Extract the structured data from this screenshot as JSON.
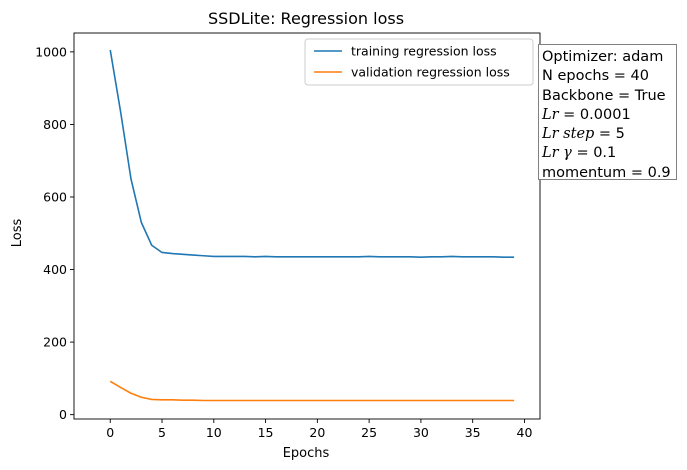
{
  "chart_data": {
    "type": "line",
    "title": "SSDLite: Regression loss",
    "xlabel": "Epochs",
    "ylabel": "Loss",
    "xlim": [
      -3.5,
      41.5
    ],
    "ylim": [
      -12,
      1052
    ],
    "x_ticks": [
      "0",
      "5",
      "10",
      "15",
      "20",
      "25",
      "30",
      "35",
      "40"
    ],
    "y_ticks": [
      "0",
      "200",
      "400",
      "600",
      "800",
      "1000"
    ],
    "x": [
      0,
      1,
      2,
      3,
      4,
      5,
      6,
      7,
      8,
      9,
      10,
      11,
      12,
      13,
      14,
      15,
      16,
      17,
      18,
      19,
      20,
      21,
      22,
      23,
      24,
      25,
      26,
      27,
      28,
      29,
      30,
      31,
      32,
      33,
      34,
      35,
      36,
      37,
      38,
      39
    ],
    "series": [
      {
        "name": "training regression loss",
        "color": "#1f77b4",
        "values": [
          1005,
          835,
          650,
          530,
          467,
          447,
          444,
          442,
          440,
          438,
          436,
          436,
          436,
          436,
          435,
          436,
          435,
          435,
          435,
          435,
          435,
          435,
          435,
          435,
          435,
          436,
          435,
          435,
          435,
          435,
          434,
          435,
          435,
          436,
          435,
          435,
          435,
          435,
          434,
          434
        ]
      },
      {
        "name": "validation regression loss",
        "color": "#ff7f0e",
        "values": [
          92,
          75,
          59,
          48,
          42,
          41,
          41,
          40,
          40,
          39,
          39,
          39,
          39,
          39,
          39,
          39,
          39,
          39,
          39,
          39,
          39,
          39,
          39,
          39,
          39,
          39,
          39,
          39,
          39,
          39,
          39,
          39,
          39,
          39,
          39,
          39,
          39,
          39,
          39,
          39
        ]
      }
    ],
    "legend": "top-right",
    "grid": false
  },
  "info": {
    "optimizer": "Optimizer: adam",
    "epochs": "N epochs = 40",
    "backbone": "Backbone = True",
    "lr_name": "Lr",
    "lr_value": " = 0.0001",
    "lr_step_name": "Lr step",
    "lr_step_value": " = 5",
    "lr_gamma_name": "Lr γ",
    "lr_gamma_value": " = 0.1",
    "momentum": "momentum = 0.9"
  }
}
